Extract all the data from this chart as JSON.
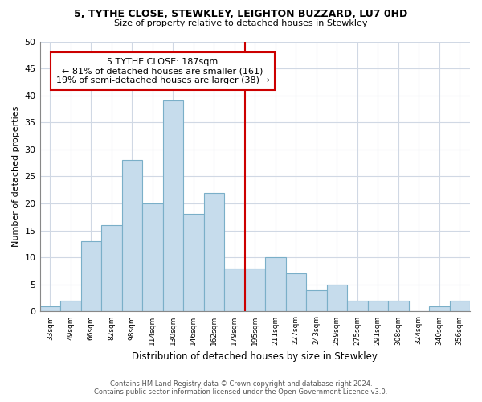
{
  "title1": "5, TYTHE CLOSE, STEWKLEY, LEIGHTON BUZZARD, LU7 0HD",
  "title2": "Size of property relative to detached houses in Stewkley",
  "xlabel": "Distribution of detached houses by size in Stewkley",
  "ylabel": "Number of detached properties",
  "bar_labels": [
    "33sqm",
    "49sqm",
    "66sqm",
    "82sqm",
    "98sqm",
    "114sqm",
    "130sqm",
    "146sqm",
    "162sqm",
    "179sqm",
    "195sqm",
    "211sqm",
    "227sqm",
    "243sqm",
    "259sqm",
    "275sqm",
    "291sqm",
    "308sqm",
    "324sqm",
    "340sqm",
    "356sqm"
  ],
  "bar_values": [
    1,
    2,
    13,
    16,
    28,
    20,
    39,
    18,
    22,
    8,
    8,
    10,
    7,
    4,
    5,
    2,
    2,
    2,
    0,
    1,
    2
  ],
  "bar_color": "#c6dcec",
  "bar_edge_color": "#7aafc8",
  "vline_x": 9.5,
  "vline_color": "#cc0000",
  "annotation_title": "5 TYTHE CLOSE: 187sqm",
  "annotation_line1": "← 81% of detached houses are smaller (161)",
  "annotation_line2": "19% of semi-detached houses are larger (38) →",
  "box_edge_color": "#cc0000",
  "ylim": [
    0,
    50
  ],
  "yticks": [
    0,
    5,
    10,
    15,
    20,
    25,
    30,
    35,
    40,
    45,
    50
  ],
  "footer_line1": "Contains HM Land Registry data © Crown copyright and database right 2024.",
  "footer_line2": "Contains public sector information licensed under the Open Government Licence v3.0."
}
